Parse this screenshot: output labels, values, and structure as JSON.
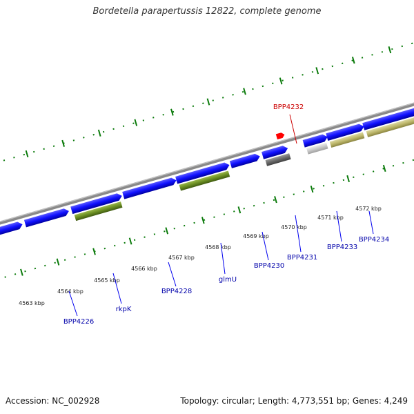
{
  "header": {
    "title": "Bordetella parapertussis 12822, complete genome"
  },
  "footer": {
    "accession": "Accession: NC_002928",
    "summary": "Topology: circular; Length: 4,773,551 bp; Genes: 4,249"
  },
  "ticks": [
    "4563 kbp",
    "4564 kbp",
    "4565 kbp",
    "4566 kbp",
    "4567 kbp",
    "4568 kbp",
    "4569 kbp",
    "4570 kbp",
    "4571 kbp",
    "4572 kbp"
  ],
  "genes": [
    {
      "name": "BPP4226",
      "color": "#0000ee"
    },
    {
      "name": "rkpK",
      "color": "#0000ee"
    },
    {
      "name": "BPP4228",
      "color": "#0000ee"
    },
    {
      "name": "glmU",
      "color": "#0000ee"
    },
    {
      "name": "BPP4230",
      "color": "#0000ee"
    },
    {
      "name": "BPP4231",
      "color": "#0000ee"
    },
    {
      "name": "BPP4232",
      "color": "#cc0000"
    },
    {
      "name": "BPP4233",
      "color": "#0000ee"
    },
    {
      "name": "BPP4234",
      "color": "#0000ee"
    }
  ],
  "colors": {
    "cds_blue": "#1a1aff",
    "rna_green": "#6b8e23",
    "grey": "#6a6a6a",
    "light_grey": "#c8c8c8",
    "khaki": "#bdb76b",
    "highlight": "#ff0000",
    "tick_green": "#0a7a0a",
    "backbone": "#8a8a8a"
  }
}
